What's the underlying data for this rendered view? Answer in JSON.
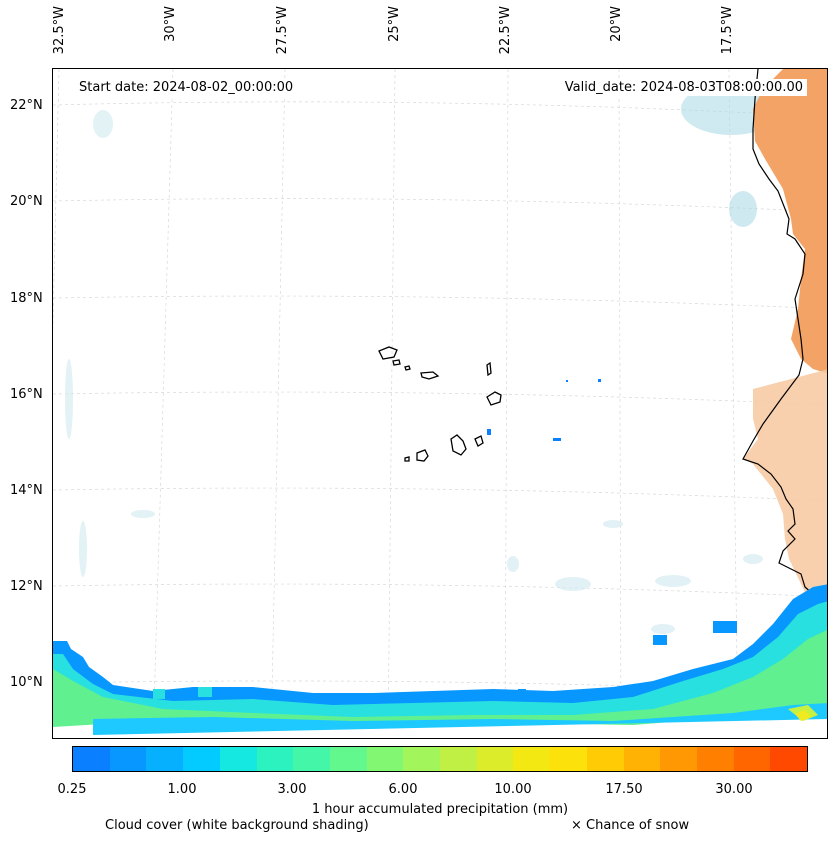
{
  "map": {
    "start_date": "Start date: 2024-08-02_00:00:00",
    "valid_date": "Valid_date: 2024-08-03T08:00:00.00",
    "longitude_labels": [
      "32.5°W",
      "30°W",
      "27.5°W",
      "25°W",
      "22.5°W",
      "20°W",
      "17.5°W"
    ],
    "latitude_labels": [
      "22°N",
      "20°N",
      "18°N",
      "16°N",
      "14°N",
      "12°N",
      "10°N"
    ]
  },
  "colorbar": {
    "colors": [
      "#0a7fff",
      "#0896ff",
      "#06b0ff",
      "#04cbff",
      "#15e8e0",
      "#2cf2c0",
      "#44f6a8",
      "#63f88d",
      "#82f872",
      "#a2f55a",
      "#c0f044",
      "#dcec2a",
      "#f3e812",
      "#fde10a",
      "#ffcb05",
      "#ffb203",
      "#ff9802",
      "#ff8001",
      "#ff6600",
      "#ff4900"
    ],
    "ticks": [
      "0.25",
      "1.00",
      "3.00",
      "6.00",
      "10.00",
      "17.50",
      "30.00"
    ],
    "label": "1 hour accumulated precipitation (mm)"
  },
  "legend": {
    "cloud_cover": "Cloud cover (white background shading)",
    "snow": "× Chance of snow"
  }
}
